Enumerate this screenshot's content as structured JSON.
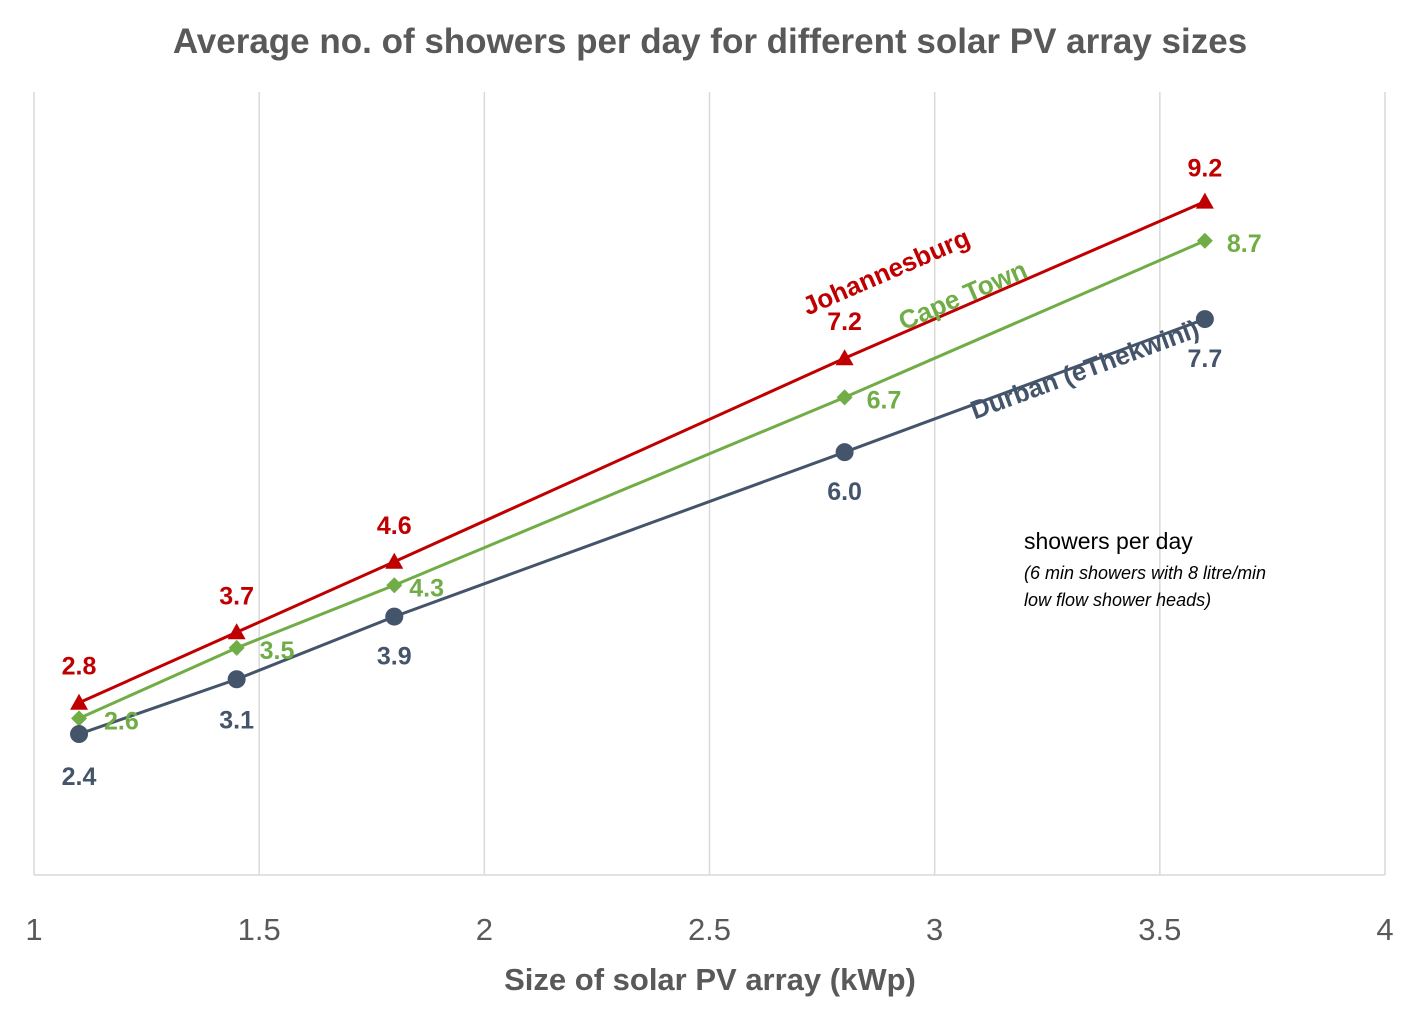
{
  "chart_data": {
    "type": "line",
    "title": "Average no. of showers per day for different solar PV array sizes",
    "xlabel": "Size of solar PV array (kWp)",
    "ylabel": "",
    "xlim": [
      1,
      4
    ],
    "ylim": [
      0.6,
      10.6
    ],
    "x_ticks": [
      "1",
      "1.5",
      "2",
      "2.5",
      "3",
      "3.5",
      "4"
    ],
    "y_tick_labels_shown": false,
    "grid": "vertical",
    "x": [
      1.1,
      1.45,
      1.8,
      2.8,
      3.6
    ],
    "series": [
      {
        "name": "Johannesburg",
        "values": [
          2.8,
          3.7,
          4.6,
          7.2,
          9.2
        ],
        "labels": [
          "2.8",
          "3.7",
          "4.6",
          "7.2",
          "9.2"
        ],
        "color": "#c00000",
        "marker": "triangle"
      },
      {
        "name": "Cape Town",
        "values": [
          2.6,
          3.5,
          4.3,
          6.7,
          8.7
        ],
        "labels": [
          "2.6",
          "3.5",
          "4.3",
          "6.7",
          "8.7"
        ],
        "color": "#70ad47",
        "marker": "diamond"
      },
      {
        "name": "Durban (eThekwini)",
        "values": [
          2.4,
          3.1,
          3.9,
          6.0,
          7.7
        ],
        "labels": [
          "2.4",
          "3.1",
          "3.9",
          "6.0",
          "7.7"
        ],
        "color": "#44546a",
        "marker": "circle"
      }
    ],
    "annotation": {
      "title": "showers per day",
      "line1": "(6 min showers with 8 litre/min",
      "line2": "low flow shower heads)"
    }
  }
}
